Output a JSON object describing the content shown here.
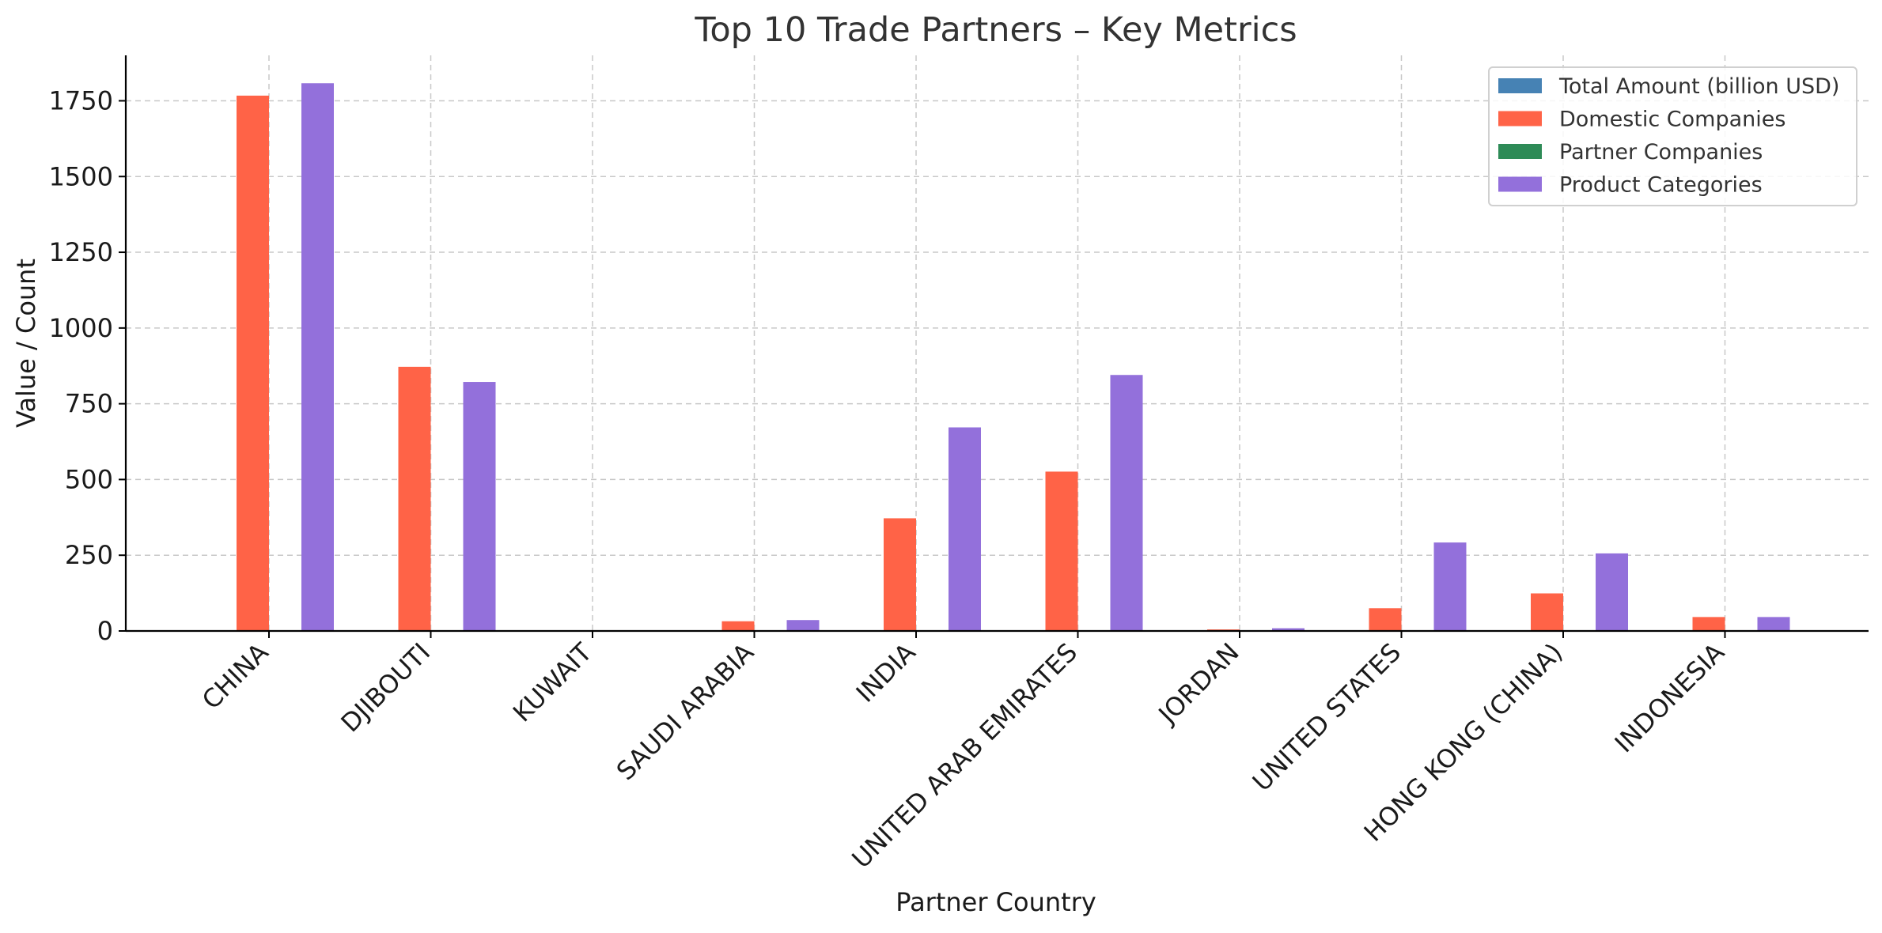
{
  "chart_data": {
    "type": "bar",
    "title": "Top 10 Trade Partners – Key Metrics",
    "xlabel": "Partner Country",
    "ylabel": "Value / Count",
    "ylim": [
      0,
      1900
    ],
    "yticks": [
      0,
      250,
      500,
      750,
      1000,
      1250,
      1500,
      1750
    ],
    "grid": true,
    "legend_position": "top-right",
    "categories": [
      "CHINA",
      "DJIBOUTI",
      "KUWAIT",
      "SAUDI ARABIA",
      "INDIA",
      "UNITED ARAB EMIRATES",
      "JORDAN",
      "UNITED STATES",
      "HONG KONG (CHINA)",
      "INDONESIA"
    ],
    "series": [
      {
        "name": "Total Amount (billion USD)",
        "color": "#4682b4",
        "values": [
          1.2,
          0.5,
          0.3,
          0.4,
          0.3,
          0.5,
          0.1,
          0.1,
          0.2,
          0.1
        ]
      },
      {
        "name": "Domestic Companies",
        "color": "#ff6347",
        "values": [
          1767,
          872,
          0,
          32,
          372,
          526,
          5,
          75,
          124,
          46
        ]
      },
      {
        "name": "Partner Companies",
        "color": "#2e8b57",
        "values": [
          2,
          1,
          0,
          1,
          2,
          1,
          0,
          1,
          1,
          1
        ]
      },
      {
        "name": "Product Categories",
        "color": "#9370db",
        "values": [
          1808,
          822,
          0,
          36,
          672,
          845,
          9,
          292,
          256,
          46
        ]
      }
    ]
  }
}
